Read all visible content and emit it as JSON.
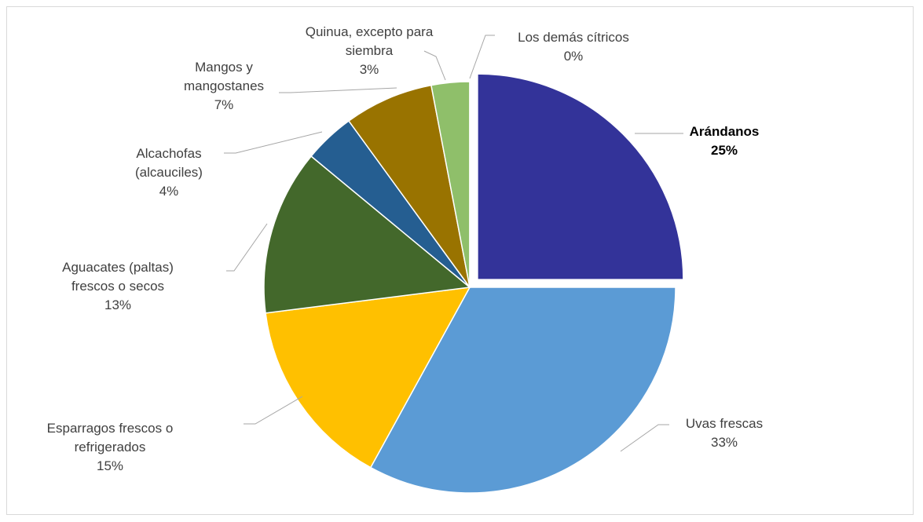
{
  "chart_data": {
    "type": "pie",
    "categories": [
      "Arándanos",
      "Uvas frescas",
      "Esparragos frescos o refrigerados",
      "Aguacates (paltas) frescos o secos",
      "Alcachofas (alcauciles)",
      "Mangos y mangostanes",
      "Quinua, excepto para siembra",
      "Los demás cítricos"
    ],
    "values": [
      25,
      33,
      15,
      13,
      4,
      7,
      3,
      0
    ],
    "value_labels": [
      "25%",
      "33%",
      "15%",
      "13%",
      "4%",
      "7%",
      "3%",
      "0%"
    ],
    "colors": [
      "#333399",
      "#5b9bd5",
      "#ffc000",
      "#43682b",
      "#255e91",
      "#997300",
      "#8fbf6a",
      "#5b9bd5"
    ],
    "highlight_index": 0
  }
}
